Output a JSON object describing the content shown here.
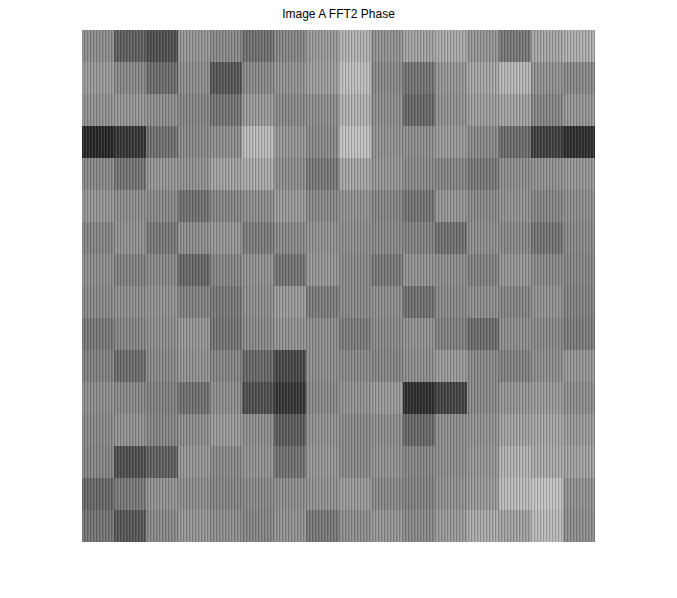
{
  "chart_data": {
    "type": "heatmap",
    "title": "Image A FFT2 Phase",
    "clim": [
      -3.1416,
      3.1416
    ],
    "tick_labels": false,
    "cells": [
      [
        0.3,
        -0.8,
        -1.2,
        0.5,
        0.2,
        -0.4,
        0.1,
        0.6,
        1.2,
        0.4,
        0.8,
        1.0,
        0.5,
        -0.2,
        0.9,
        1.1
      ],
      [
        0.6,
        0.2,
        -0.5,
        0.3,
        -1.0,
        0.2,
        0.4,
        0.7,
        1.5,
        0.2,
        -0.3,
        0.5,
        0.9,
        1.3,
        0.4,
        0.2
      ],
      [
        0.4,
        0.5,
        0.3,
        0.1,
        -0.3,
        0.6,
        0.2,
        0.3,
        1.2,
        0.3,
        -0.6,
        0.4,
        0.7,
        0.8,
        0.1,
        0.5
      ],
      [
        -2.2,
        -1.8,
        -0.4,
        0.2,
        0.3,
        1.4,
        0.5,
        0.2,
        1.6,
        0.4,
        0.3,
        0.6,
        0.2,
        -0.5,
        -1.6,
        -2.0
      ],
      [
        0.2,
        -0.3,
        0.5,
        0.4,
        0.8,
        1.0,
        0.3,
        -0.2,
        0.9,
        0.5,
        0.2,
        0.1,
        -0.2,
        0.3,
        0.4,
        0.5
      ],
      [
        0.5,
        0.3,
        0.2,
        -0.4,
        0.1,
        0.3,
        0.6,
        0.2,
        0.4,
        0.1,
        -0.3,
        0.5,
        0.2,
        0.4,
        0.1,
        0.3
      ],
      [
        0.1,
        0.4,
        -0.2,
        0.3,
        0.5,
        -0.1,
        0.2,
        0.4,
        0.3,
        0.2,
        0.0,
        -0.4,
        0.3,
        0.2,
        -0.3,
        0.2
      ],
      [
        0.3,
        0.0,
        0.2,
        -0.6,
        0.1,
        0.4,
        -0.3,
        0.5,
        0.2,
        -0.2,
        0.4,
        0.3,
        0.0,
        0.5,
        0.2,
        0.1
      ],
      [
        0.2,
        0.3,
        0.4,
        0.0,
        -0.2,
        0.3,
        0.6,
        -0.1,
        0.2,
        0.3,
        -0.4,
        0.2,
        0.3,
        0.1,
        0.4,
        0.0
      ],
      [
        -0.2,
        0.1,
        0.3,
        0.5,
        -0.3,
        0.2,
        0.4,
        0.3,
        -0.1,
        0.2,
        0.4,
        0.0,
        -0.5,
        0.3,
        0.2,
        -0.1
      ],
      [
        0.0,
        -0.5,
        0.2,
        0.4,
        0.1,
        -0.6,
        -1.4,
        0.3,
        0.2,
        0.1,
        0.3,
        0.6,
        0.2,
        0.0,
        0.3,
        0.5
      ],
      [
        0.3,
        0.2,
        0.0,
        -0.4,
        0.3,
        -1.2,
        -1.8,
        0.2,
        0.4,
        0.6,
        -2.0,
        -1.5,
        0.2,
        0.5,
        0.6,
        0.3
      ],
      [
        0.2,
        0.4,
        0.1,
        0.3,
        0.6,
        0.3,
        -0.9,
        0.4,
        0.2,
        0.3,
        -0.6,
        0.3,
        0.4,
        0.8,
        0.9,
        0.6
      ],
      [
        0.1,
        -1.2,
        -0.8,
        0.5,
        0.2,
        0.4,
        -0.4,
        0.5,
        0.2,
        0.4,
        0.1,
        0.3,
        0.5,
        1.2,
        1.0,
        0.8
      ],
      [
        -0.6,
        -0.2,
        0.4,
        0.3,
        0.1,
        0.2,
        0.3,
        0.4,
        0.6,
        0.2,
        0.0,
        0.4,
        0.6,
        1.4,
        1.6,
        0.4
      ],
      [
        -0.3,
        -1.0,
        0.2,
        0.5,
        0.3,
        0.1,
        0.4,
        -0.2,
        0.3,
        0.5,
        0.2,
        0.6,
        1.0,
        0.8,
        1.4,
        0.3
      ]
    ]
  }
}
